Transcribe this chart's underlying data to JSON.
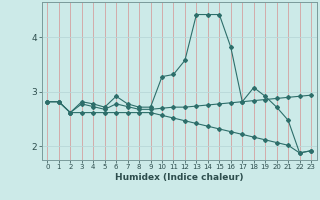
{
  "title": "",
  "xlabel": "Humidex (Indice chaleur)",
  "bg_color": "#cceae8",
  "vgrid_color": "#d4a0a0",
  "hgrid_color": "#b8d8d8",
  "line_color": "#2d6e6a",
  "x_ticks": [
    0,
    1,
    2,
    3,
    4,
    5,
    6,
    7,
    8,
    9,
    10,
    11,
    12,
    13,
    14,
    15,
    16,
    17,
    18,
    19,
    20,
    21,
    22,
    23
  ],
  "ylim": [
    1.75,
    4.65
  ],
  "yticks": [
    2,
    3,
    4
  ],
  "series": [
    [
      2.82,
      2.82,
      2.62,
      2.82,
      2.78,
      2.72,
      2.92,
      2.78,
      2.72,
      2.72,
      3.28,
      3.32,
      3.58,
      4.42,
      4.42,
      4.42,
      3.82,
      2.82,
      3.08,
      2.92,
      2.72,
      2.48,
      1.88,
      1.92
    ],
    [
      2.82,
      2.82,
      2.62,
      2.78,
      2.73,
      2.68,
      2.78,
      2.73,
      2.68,
      2.68,
      2.7,
      2.72,
      2.72,
      2.74,
      2.76,
      2.78,
      2.8,
      2.82,
      2.84,
      2.86,
      2.88,
      2.9,
      2.92,
      2.94
    ],
    [
      2.82,
      2.82,
      2.62,
      2.62,
      2.62,
      2.62,
      2.62,
      2.62,
      2.62,
      2.62,
      2.57,
      2.52,
      2.47,
      2.42,
      2.37,
      2.32,
      2.27,
      2.22,
      2.17,
      2.12,
      2.07,
      2.02,
      1.88,
      1.92
    ]
  ]
}
